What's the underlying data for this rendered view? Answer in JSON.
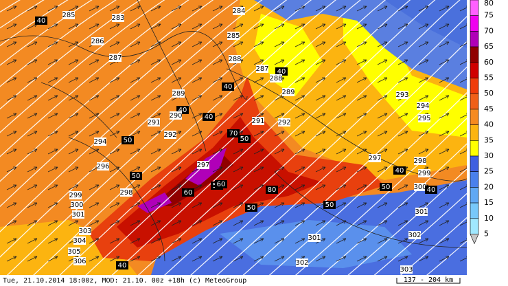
{
  "legend": {
    "levels": [
      80,
      75,
      70,
      65,
      60,
      55,
      50,
      45,
      40,
      35,
      30,
      25,
      20,
      15,
      10,
      5
    ],
    "colors": [
      "#ff60ff",
      "#f000f0",
      "#b000b8",
      "#900000",
      "#d00000",
      "#f03c0a",
      "#f06018",
      "#f58a20",
      "#fcb410",
      "#ffff00",
      "#3f5fe0",
      "#4a80ec",
      "#60a8f4",
      "#78c8fa",
      "#a0e8ff",
      "#c8c8c8"
    ]
  },
  "contour_labels": [
    "285",
    "40",
    "283",
    "286",
    "287",
    "284",
    "285",
    "288",
    "287",
    "40",
    "288",
    "40",
    "289",
    "40",
    "289",
    "290",
    "291",
    "40",
    "50",
    "292",
    "291",
    "294",
    "50",
    "292",
    "296",
    "50",
    "297",
    "298",
    "299",
    "50",
    "300",
    "301",
    "303",
    "304",
    "305",
    "306",
    "60",
    "70",
    "80",
    "50",
    "60",
    "40",
    "293",
    "294",
    "295",
    "297",
    "298",
    "299",
    "300",
    "301",
    "301",
    "302",
    "302",
    "303",
    "40",
    "50",
    "50",
    "40"
  ],
  "footer": {
    "text": "Tue, 21.10.2014 18:00z, MOD: 21.10. 00z +18h (c) MeteoGroup",
    "scale": "137 - 204 km"
  }
}
